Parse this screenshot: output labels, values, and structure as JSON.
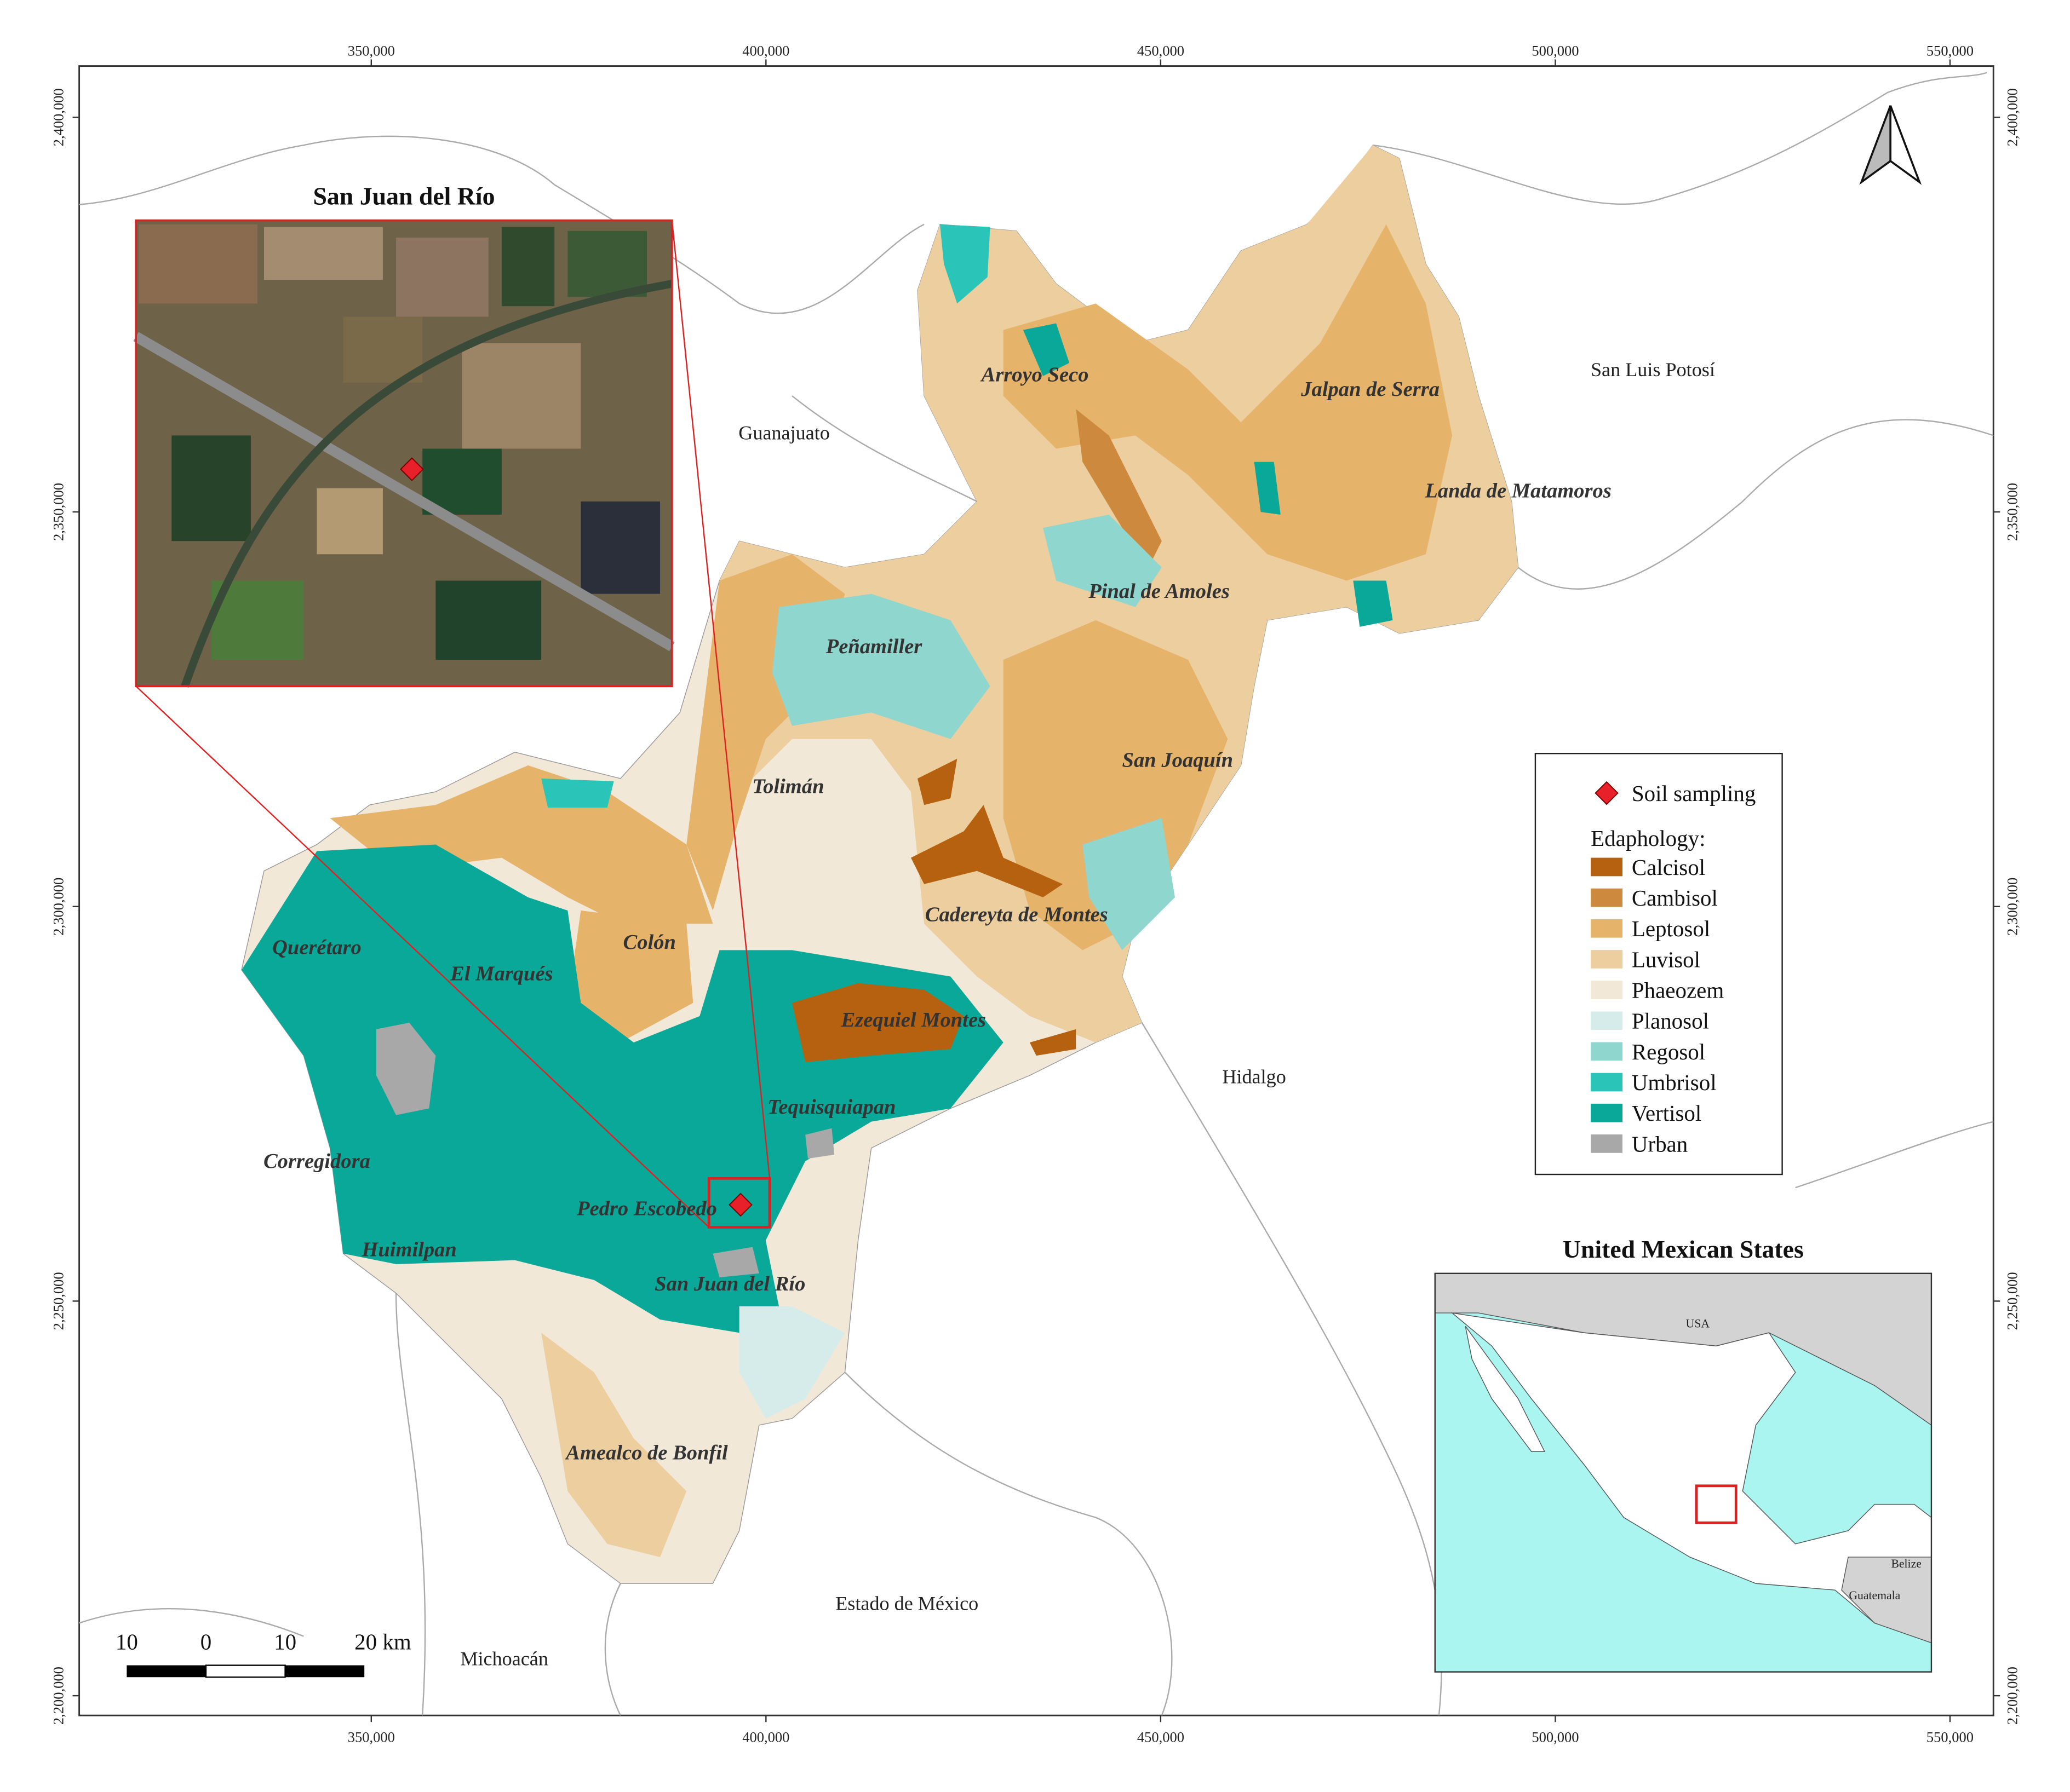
{
  "map": {
    "xlim": [
      313000,
      555500
    ],
    "ylim": [
      2197500,
      2406500
    ],
    "xticks": [
      {
        "value": 350000,
        "label": "350,000"
      },
      {
        "value": 400000,
        "label": "400,000"
      },
      {
        "value": 450000,
        "label": "450,000"
      },
      {
        "value": 500000,
        "label": "500,000"
      },
      {
        "value": 550000,
        "label": "550,000"
      }
    ],
    "yticks": [
      {
        "value": 2200000,
        "label": "2,200,000"
      },
      {
        "value": 2250000,
        "label": "2,250,000"
      },
      {
        "value": 2300000,
        "label": "2,300,000"
      },
      {
        "value": 2350000,
        "label": "2,350,000"
      },
      {
        "value": 2400000,
        "label": "2,400,000"
      }
    ],
    "municipalities": [
      "Arroyo Seco",
      "Jalpan de Serra",
      "Landa de Matamoros",
      "Pinal de Amoles",
      "Peñamiller",
      "San Joaquín",
      "Tolimán",
      "Cadereyta de Montes",
      "Querétaro",
      "El Marqués",
      "Colón",
      "Ezequiel Montes",
      "Tequisquiapan",
      "Corregidora",
      "Pedro Escobedo",
      "Huimilpan",
      "San Juan del Río",
      "Amealco de Bonfil"
    ],
    "states": [
      "Guanajuato",
      "San Luis Potosí",
      "Hidalgo",
      "Estado de México",
      "Michoacán"
    ],
    "legend": {
      "marker": "Soil sampling",
      "title": "Edaphology:",
      "classes": [
        {
          "name": "Calcisol",
          "color": "#b5610f"
        },
        {
          "name": "Cambisol",
          "color": "#cd8a3e"
        },
        {
          "name": "Leptosol",
          "color": "#e6b36b"
        },
        {
          "name": "Luvisol",
          "color": "#ecce9f"
        },
        {
          "name": "Phaeozem",
          "color": "#f1e8d8"
        },
        {
          "name": "Planosol",
          "color": "#d6ecea"
        },
        {
          "name": "Regosol",
          "color": "#8fd6cf"
        },
        {
          "name": "Umbrisol",
          "color": "#2bc4b8"
        },
        {
          "name": "Vertisol",
          "color": "#0aa898"
        },
        {
          "name": "Urban",
          "color": "#a8a8a8"
        }
      ]
    },
    "scale_bar": [
      "10",
      "0",
      "10",
      "20 km"
    ],
    "inset_sample": {
      "title": "San Juan del Río"
    },
    "inset_country": {
      "title": "United Mexican States",
      "labels": [
        "USA",
        "Belize",
        "Guatemala"
      ]
    }
  }
}
